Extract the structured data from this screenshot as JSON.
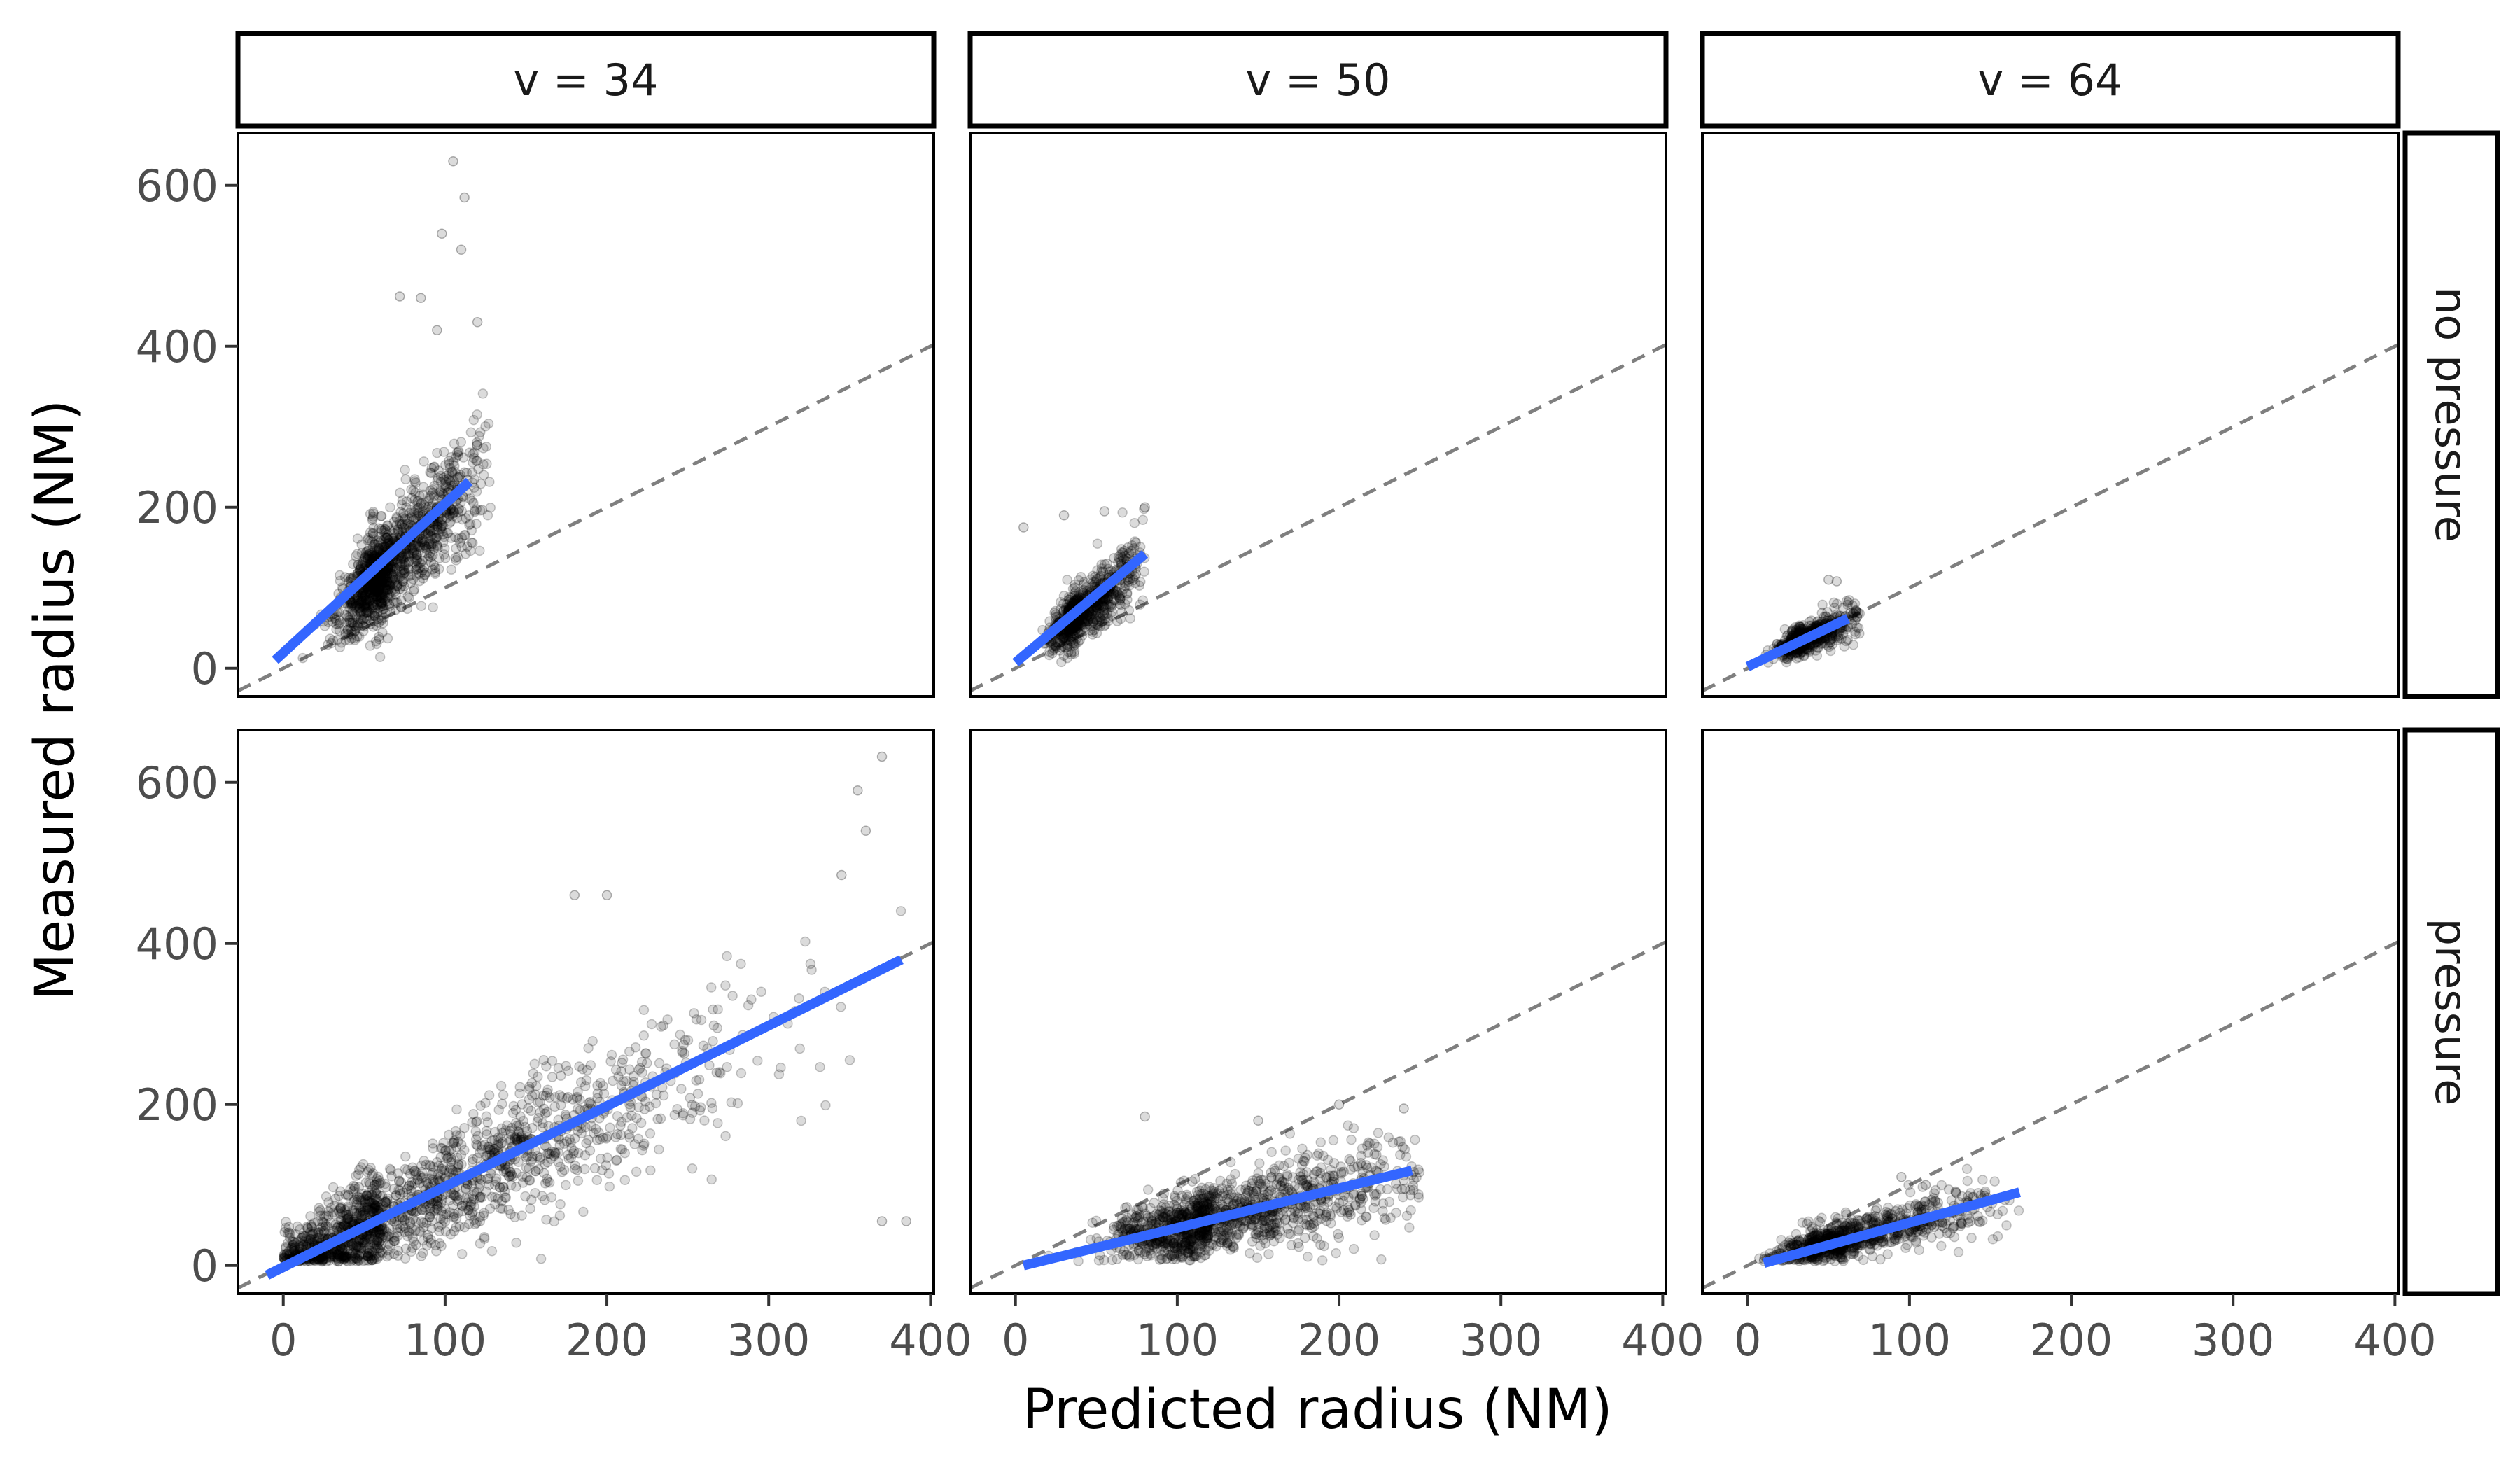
{
  "chart_data": {
    "type": "scatter",
    "xlabel": "Predicted radius (NM)",
    "ylabel": "Measured radius (NM)",
    "xlim": [
      -28,
      402
    ],
    "ylim": [
      -35,
      665
    ],
    "x_ticks": [
      "0",
      "100",
      "200",
      "300",
      "400"
    ],
    "y_ticks": [
      "0",
      "200",
      "400",
      "600"
    ],
    "columns": [
      "v = 34",
      "v = 50",
      "v = 64"
    ],
    "rows": [
      "no pressure",
      "pressure"
    ],
    "grid": false,
    "reference_line": {
      "slope": 1,
      "intercept": 0,
      "style": "dashed",
      "color": "#7f7f7f"
    },
    "point_color": "#000000",
    "fit_color": "#3366ff",
    "panels": [
      {
        "column": "v = 34",
        "row": "no pressure",
        "cloud": {
          "x_range": [
            0,
            130
          ],
          "x_mode": 65,
          "slope": 1.95,
          "intercept": 0,
          "spread": 30,
          "count": 1300,
          "outliers": [
            [
              105,
              630
            ],
            [
              112,
              585
            ],
            [
              98,
              540
            ],
            [
              110,
              520
            ],
            [
              85,
              460
            ],
            [
              72,
              462
            ],
            [
              120,
              430
            ],
            [
              95,
              420
            ]
          ]
        },
        "fit": {
          "x": [
            -5,
            115
          ],
          "y": [
            10,
            232
          ]
        }
      },
      {
        "column": "v = 50",
        "row": "no pressure",
        "cloud": {
          "x_range": [
            0,
            80
          ],
          "x_mode": 40,
          "slope": 1.6,
          "intercept": 5,
          "spread": 16,
          "count": 800,
          "outliers": [
            [
              5,
              175
            ],
            [
              30,
              190
            ],
            [
              55,
              195
            ],
            [
              80,
              200
            ]
          ]
        },
        "fit": {
          "x": [
            0,
            80
          ],
          "y": [
            7,
            142
          ]
        }
      },
      {
        "column": "v = 64",
        "row": "no pressure",
        "cloud": {
          "x_range": [
            0,
            70
          ],
          "x_mode": 35,
          "slope": 0.85,
          "intercept": 6,
          "spread": 9,
          "count": 600,
          "outliers": [
            [
              50,
              110
            ],
            [
              55,
              108
            ]
          ]
        },
        "fit": {
          "x": [
            0,
            62
          ],
          "y": [
            2,
            62
          ]
        }
      },
      {
        "column": "v = 34",
        "row": "pressure",
        "cloud": {
          "x_range": [
            0,
            390
          ],
          "x_mode": 60,
          "slope": 0.95,
          "intercept": 0,
          "spread": 45,
          "count": 1700,
          "outliers": [
            [
              370,
              632
            ],
            [
              355,
              590
            ],
            [
              360,
              540
            ],
            [
              345,
              485
            ],
            [
              180,
              460
            ],
            [
              200,
              460
            ],
            [
              370,
              55
            ],
            [
              385,
              55
            ]
          ]
        },
        "fit": {
          "x": [
            -10,
            382
          ],
          "y": [
            -12,
            380
          ]
        }
      },
      {
        "column": "v = 50",
        "row": "pressure",
        "cloud": {
          "x_range": [
            0,
            250
          ],
          "x_mode": 120,
          "slope": 0.45,
          "intercept": 2,
          "spread": 22,
          "count": 1300,
          "outliers": [
            [
              80,
              185
            ],
            [
              150,
              180
            ],
            [
              200,
              200
            ],
            [
              240,
              195
            ]
          ]
        },
        "fit": {
          "x": [
            5,
            245
          ],
          "y": [
            0,
            118
          ]
        }
      },
      {
        "column": "v = 64",
        "row": "pressure",
        "cloud": {
          "x_range": [
            0,
            170
          ],
          "x_mode": 60,
          "slope": 0.5,
          "intercept": 2,
          "spread": 14,
          "count": 900,
          "outliers": [
            [
              95,
              110
            ],
            [
              110,
              100
            ]
          ]
        },
        "fit": {
          "x": [
            10,
            168
          ],
          "y": [
            3,
            91
          ]
        }
      }
    ]
  }
}
